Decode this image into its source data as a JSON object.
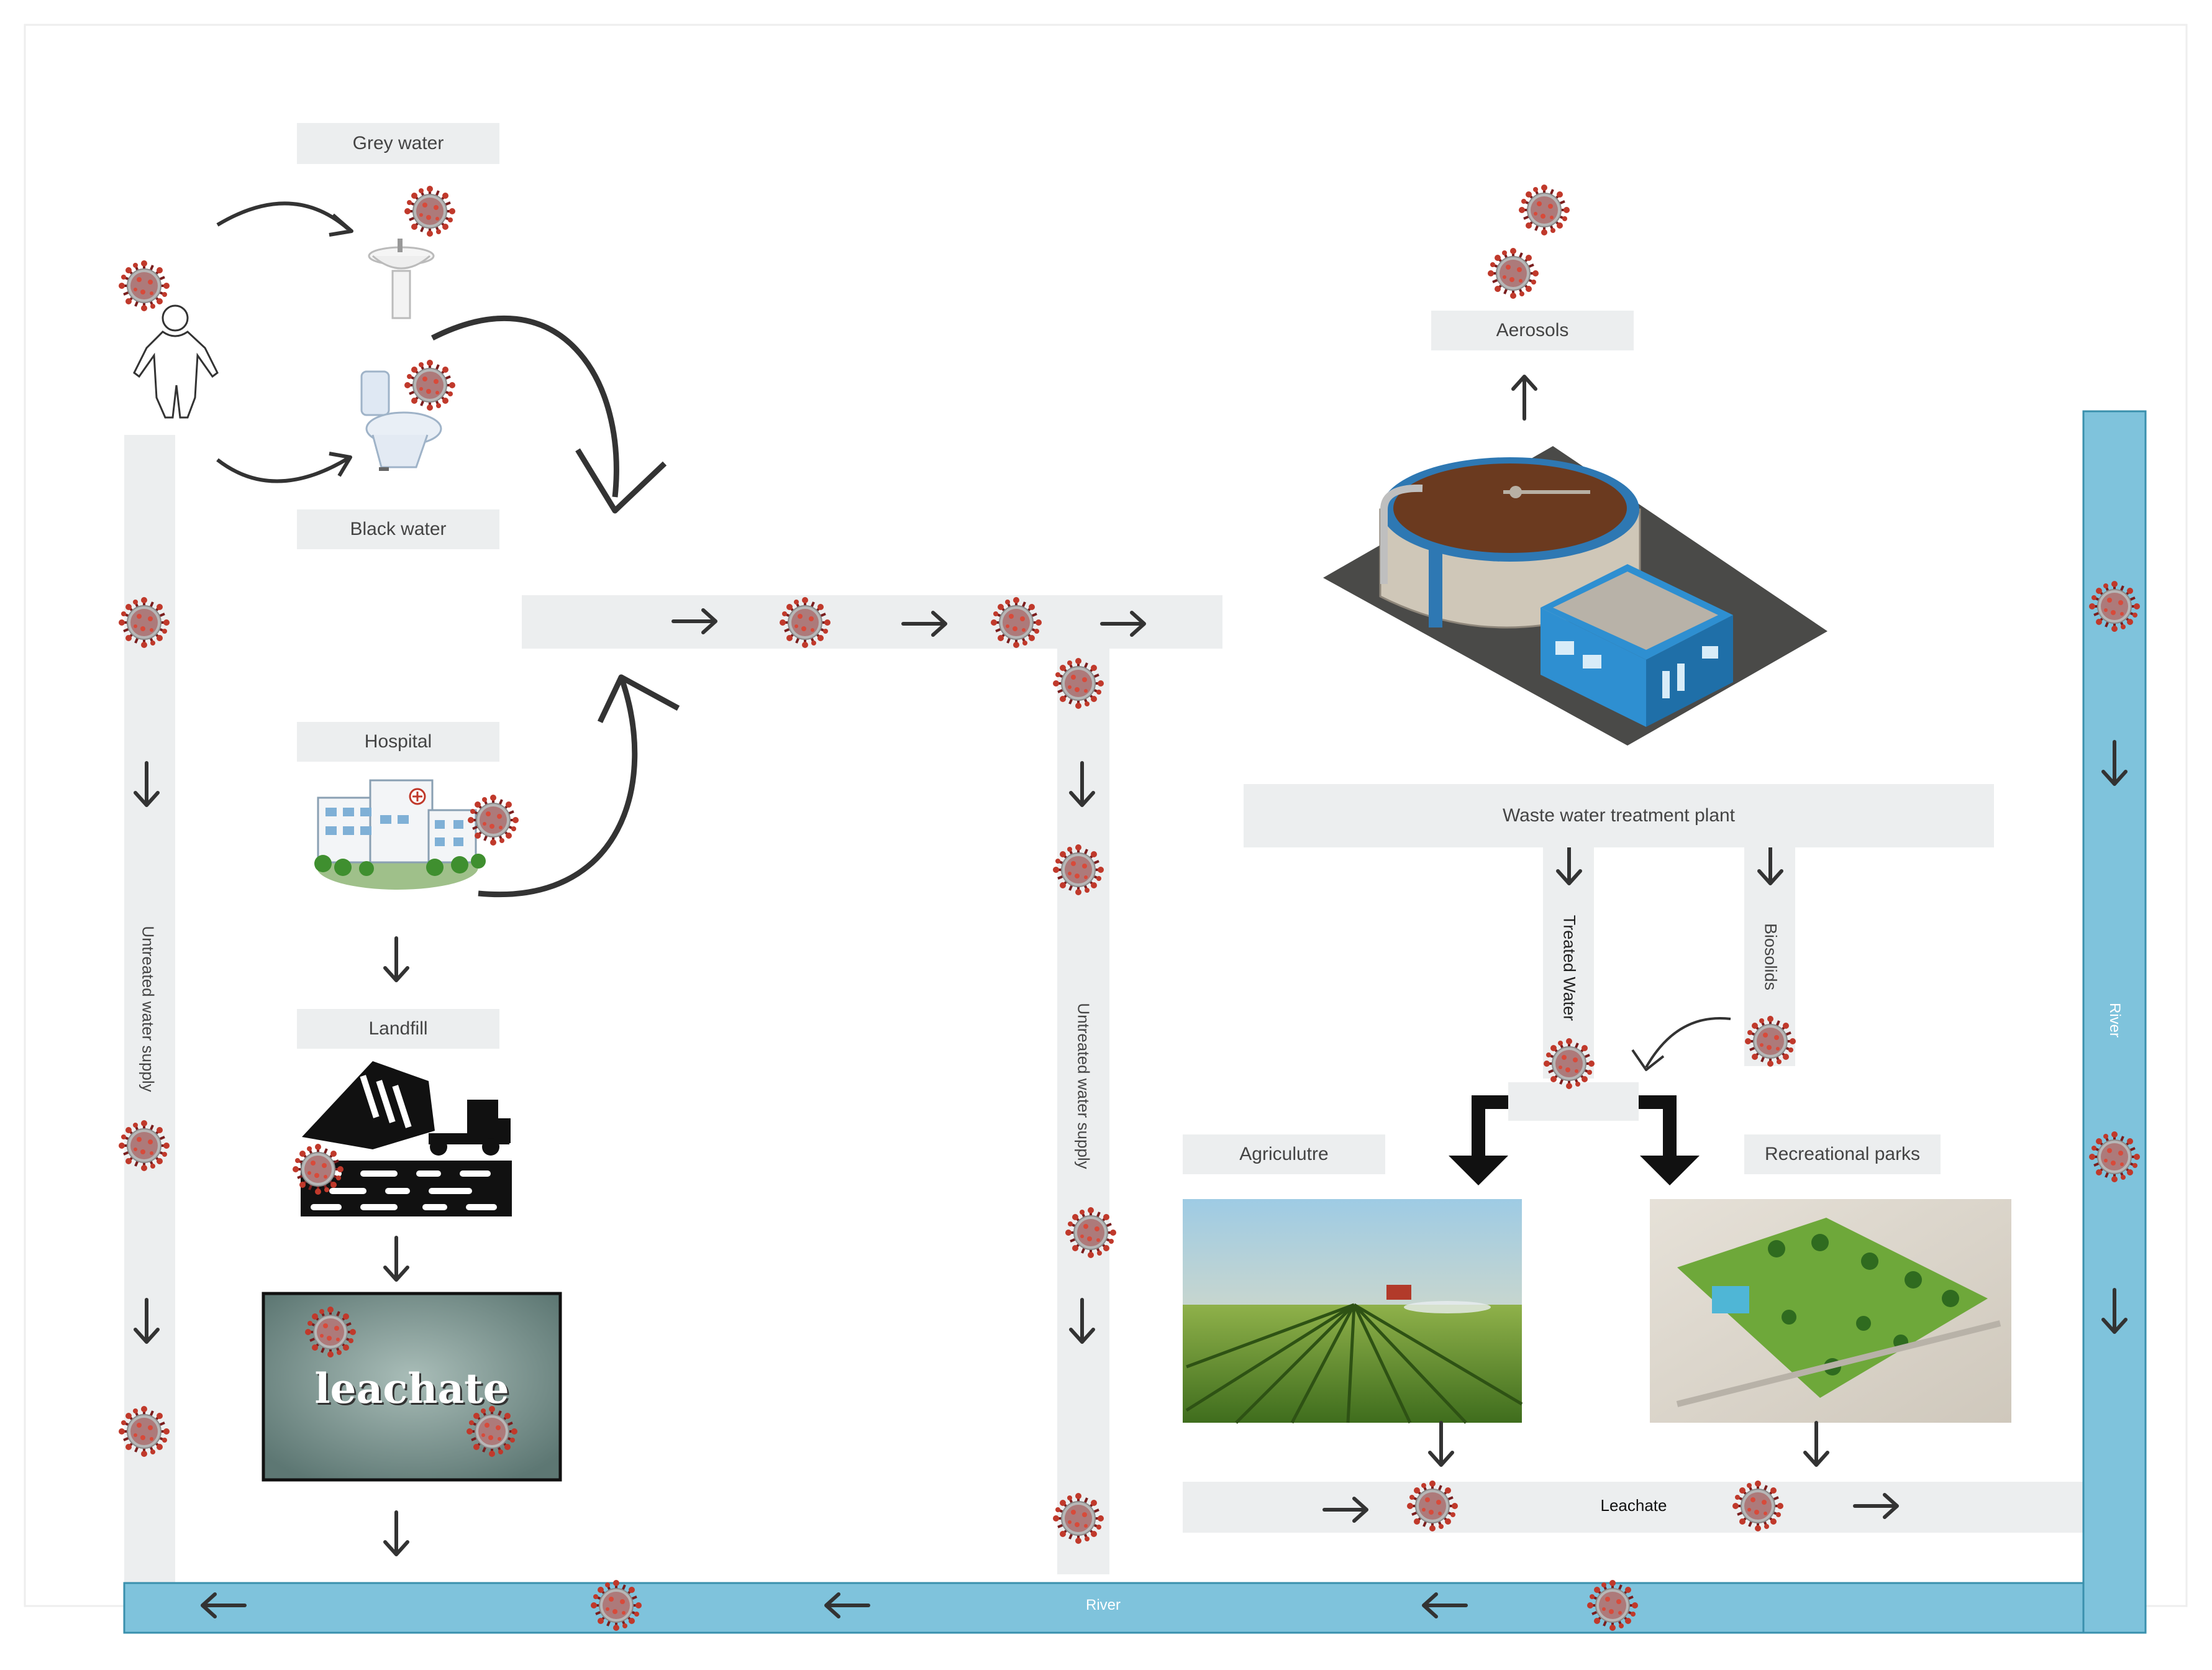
{
  "labels": {
    "grey_water": "Grey water",
    "black_water": "Black water",
    "hospital": "Hospital",
    "landfill": "Landfill",
    "leachate_sign": "leachate",
    "aerosols": "Aerosols",
    "wwtp": "Waste water treatment plant",
    "treated_water": "Treated Water",
    "biosolids": "Biosolids",
    "agriculture": "Agriculutre",
    "recreational_parks": "Recreational parks",
    "leachate_bar": "Leachate",
    "river_bottom": "River",
    "river_right": "River",
    "untreated_left": "Untreated water supply",
    "untreated_mid": "Untreated water supply"
  },
  "colors": {
    "label_bg": "#eceeef",
    "river": "#7fc3dc",
    "river_border": "#3a90ad",
    "virus": "#9b2a2a",
    "arrow": "#333333"
  },
  "icons": {
    "virus": "coronavirus-icon",
    "person": "human-outline-icon",
    "sink": "sink-icon",
    "toilet": "toilet-icon",
    "hospital": "hospital-building-icon",
    "landfill": "dump-truck-landfill-icon",
    "plant": "treatment-plant-icon"
  }
}
